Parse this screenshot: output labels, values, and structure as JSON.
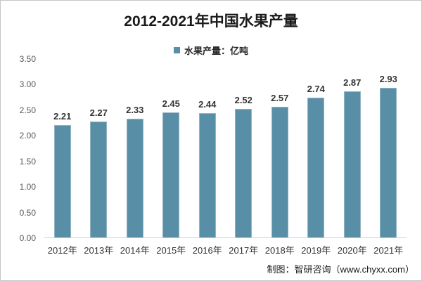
{
  "chart_data": {
    "type": "bar",
    "title": "2012-2021年中国水果产量",
    "legend": "水果产量：亿吨",
    "categories": [
      "2012年",
      "2013年",
      "2014年",
      "2015年",
      "2016年",
      "2017年",
      "2018年",
      "2019年",
      "2020年",
      "2021年"
    ],
    "values": [
      2.21,
      2.27,
      2.33,
      2.45,
      2.44,
      2.52,
      2.57,
      2.74,
      2.87,
      2.93
    ],
    "xlabel": "",
    "ylabel": "",
    "ylim": [
      0,
      3.5
    ],
    "yticks": [
      0.0,
      0.5,
      1.0,
      1.5,
      2.0,
      2.5,
      3.0,
      3.5
    ],
    "grid": "off",
    "legend_position": "top-center",
    "bar_color": "#588FA7",
    "axis_line_color": "#d2d2d2"
  },
  "source": "制图：智研咨询（www.chyxx.com）"
}
